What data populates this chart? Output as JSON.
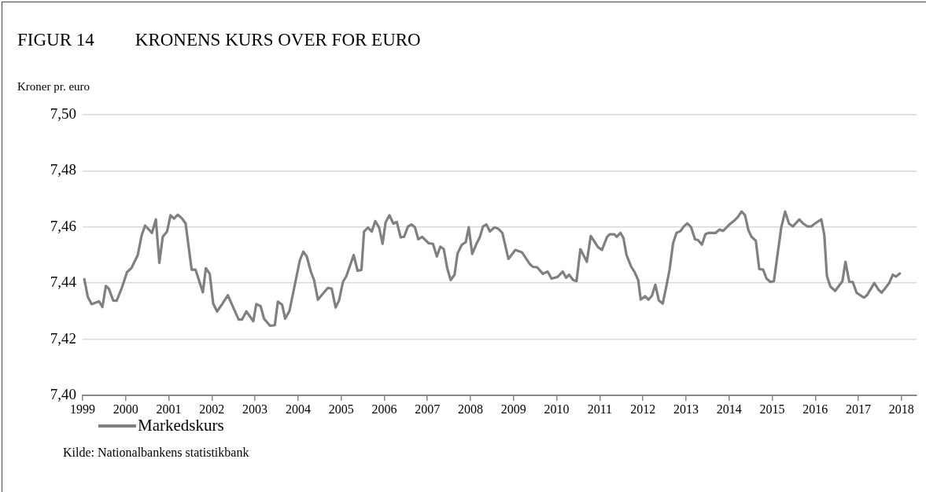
{
  "chart_data": {
    "type": "line",
    "title": "FIGUR 14",
    "subtitle": "KRONENS KURS OVER FOR EURO",
    "ylabel": "Kroner pr. euro",
    "annotations": [
      "Kilde: Nationalbankens statistikbank"
    ],
    "xlim": [
      1999,
      2018.35
    ],
    "xticks": [
      1999,
      2000,
      2001,
      2002,
      2003,
      2004,
      2005,
      2006,
      2007,
      2008,
      2009,
      2010,
      2011,
      2012,
      2013,
      2014,
      2015,
      2016,
      2017,
      2018
    ],
    "ylim": [
      7.4,
      7.5
    ],
    "yticks": [
      {
        "value": 7.4,
        "label": "7,40"
      },
      {
        "value": 7.42,
        "label": "7,42"
      },
      {
        "value": 7.44,
        "label": "7,44"
      },
      {
        "value": 7.46,
        "label": "7,46"
      },
      {
        "value": 7.48,
        "label": "7,48"
      },
      {
        "value": 7.5,
        "label": "7,50"
      }
    ],
    "grid": "y",
    "legend": "bottom left",
    "marker": "none",
    "line_style": "solid",
    "series": [
      {
        "name": "Markedskurs",
        "color": "#808080",
        "x": [
          1999.04,
          1999.12,
          1999.21,
          1999.38,
          1999.46,
          1999.54,
          1999.61,
          1999.71,
          1999.79,
          1999.91,
          2000.03,
          2000.13,
          2000.28,
          2000.37,
          2000.45,
          2000.61,
          2000.7,
          2000.78,
          2000.86,
          2000.96,
          2001.04,
          2001.12,
          2001.21,
          2001.31,
          2001.39,
          2001.53,
          2001.62,
          2001.79,
          2001.86,
          2001.95,
          2002.03,
          2002.12,
          2002.23,
          2002.37,
          2002.62,
          2002.7,
          2002.8,
          2002.96,
          2003.03,
          2003.13,
          2003.21,
          2003.35,
          2003.46,
          2003.53,
          2003.63,
          2003.7,
          2003.8,
          2004.04,
          2004.12,
          2004.2,
          2004.3,
          2004.37,
          2004.46,
          2004.69,
          2004.78,
          2004.87,
          2004.95,
          2005.04,
          2005.12,
          2005.29,
          2005.38,
          2005.47,
          2005.53,
          2005.62,
          2005.71,
          2005.79,
          2005.88,
          2005.96,
          2006.03,
          2006.12,
          2006.21,
          2006.29,
          2006.38,
          2006.46,
          2006.55,
          2006.63,
          2006.71,
          2006.79,
          2006.88,
          2007.03,
          2007.13,
          2007.22,
          2007.3,
          2007.38,
          2007.46,
          2007.54,
          2007.63,
          2007.7,
          2007.8,
          2007.89,
          2007.96,
          2008.04,
          2008.13,
          2008.22,
          2008.29,
          2008.37,
          2008.45,
          2008.56,
          2008.65,
          2008.74,
          2008.88,
          2009.04,
          2009.2,
          2009.38,
          2009.45,
          2009.55,
          2009.68,
          2009.79,
          2009.88,
          2010.02,
          2010.14,
          2010.22,
          2010.29,
          2010.38,
          2010.46,
          2010.55,
          2010.7,
          2010.79,
          2010.96,
          2011.05,
          2011.17,
          2011.23,
          2011.34,
          2011.39,
          2011.48,
          2011.55,
          2011.62,
          2011.73,
          2011.81,
          2011.89,
          2011.95,
          2012.05,
          2012.13,
          2012.21,
          2012.29,
          2012.37,
          2012.46,
          2012.55,
          2012.62,
          2012.7,
          2012.78,
          2012.87,
          2012.95,
          2013.03,
          2013.12,
          2013.21,
          2013.28,
          2013.37,
          2013.45,
          2013.53,
          2013.69,
          2013.78,
          2013.86,
          2014.01,
          2014.13,
          2014.21,
          2014.29,
          2014.37,
          2014.45,
          2014.52,
          2014.62,
          2014.7,
          2014.79,
          2014.87,
          2014.96,
          2015.04,
          2015.21,
          2015.3,
          2015.39,
          2015.48,
          2015.63,
          2015.72,
          2015.82,
          2015.91,
          2015.99,
          2016.14,
          2016.21,
          2016.27,
          2016.35,
          2016.46,
          2016.63,
          2016.7,
          2016.79,
          2016.87,
          2016.96,
          2017.13,
          2017.2,
          2017.37,
          2017.47,
          2017.54,
          2017.63,
          2017.71,
          2017.8,
          2017.87,
          2017.96
        ],
        "values": [
          7.4414,
          7.4351,
          7.4325,
          7.4335,
          7.4315,
          7.439,
          7.438,
          7.4338,
          7.4337,
          7.4383,
          7.4439,
          7.4453,
          7.45,
          7.457,
          7.4605,
          7.4579,
          7.4627,
          7.4472,
          7.4565,
          7.4584,
          7.4642,
          7.463,
          7.4644,
          7.463,
          7.4612,
          7.4448,
          7.4448,
          7.4367,
          7.4453,
          7.4433,
          7.4327,
          7.4299,
          7.4323,
          7.4357,
          7.427,
          7.427,
          7.4299,
          7.4264,
          7.4325,
          7.4318,
          7.4273,
          7.4248,
          7.425,
          7.4334,
          7.4323,
          7.4273,
          7.4301,
          7.4481,
          7.4512,
          7.4495,
          7.4439,
          7.4411,
          7.4341,
          7.4383,
          7.438,
          7.4313,
          7.4338,
          7.4404,
          7.4425,
          7.45,
          7.4444,
          7.4447,
          7.4584,
          7.4598,
          7.4584,
          7.4621,
          7.4598,
          7.454,
          7.4616,
          7.4642,
          7.4612,
          7.4618,
          7.4563,
          7.4565,
          7.4602,
          7.4609,
          7.4599,
          7.4556,
          7.4565,
          7.4542,
          7.454,
          7.4495,
          7.453,
          7.4521,
          7.4453,
          7.4411,
          7.443,
          7.4506,
          7.4537,
          7.4546,
          7.4599,
          7.4504,
          7.4537,
          7.4565,
          7.4602,
          7.4609,
          7.4584,
          7.4599,
          7.4593,
          7.4579,
          7.4486,
          7.4518,
          7.4509,
          7.4467,
          7.4458,
          7.4456,
          7.4433,
          7.4441,
          7.4416,
          7.4422,
          7.4441,
          7.4419,
          7.443,
          7.4411,
          7.4407,
          7.4521,
          7.4476,
          7.4568,
          7.4528,
          7.4518,
          7.4565,
          7.4574,
          7.4574,
          7.4565,
          7.4579,
          7.456,
          7.45,
          7.4458,
          7.4439,
          7.4411,
          7.4341,
          7.4353,
          7.4341,
          7.4355,
          7.4394,
          7.4338,
          7.4327,
          7.4393,
          7.4448,
          7.4542,
          7.4579,
          7.4585,
          7.4602,
          7.4613,
          7.4599,
          7.4556,
          7.4553,
          7.4537,
          7.4574,
          7.4579,
          7.4579,
          7.4591,
          7.4586,
          7.4609,
          7.4624,
          7.4637,
          7.4655,
          7.4642,
          7.4588,
          7.4565,
          7.4551,
          7.445,
          7.4448,
          7.4416,
          7.4404,
          7.4407,
          7.4598,
          7.4655,
          7.4612,
          7.4602,
          7.4627,
          7.4612,
          7.4602,
          7.4602,
          7.4612,
          7.4627,
          7.4571,
          7.4425,
          7.4388,
          7.4372,
          7.4407,
          7.4476,
          7.4404,
          7.4404,
          7.4365,
          7.4348,
          7.4357,
          7.44,
          7.4376,
          7.4366,
          7.4383,
          7.4399,
          7.443,
          7.4423,
          7.4434
        ]
      }
    ]
  }
}
